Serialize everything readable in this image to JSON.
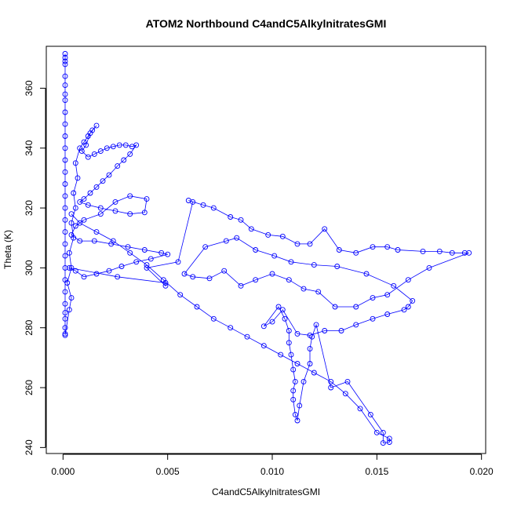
{
  "chart_data": {
    "type": "scatter",
    "title": "ATOM2 Northbound C4andC5AlkylnitratesGMI",
    "xlabel": "C4andC5AlkylnitratesGMI",
    "ylabel": "Theta (K)",
    "xlim": [
      -0.0008,
      0.0202
    ],
    "ylim": [
      238,
      374
    ],
    "xticks": [
      0.0,
      0.005,
      0.01,
      0.015,
      0.02
    ],
    "xtick_labels": [
      "0.000",
      "0.005",
      "0.010",
      "0.015",
      "0.020"
    ],
    "yticks": [
      240,
      260,
      280,
      300,
      320,
      340,
      360
    ],
    "ytick_labels": [
      "240",
      "260",
      "280",
      "300",
      "320",
      "340",
      "360"
    ],
    "grid": false,
    "marker": "open-circle",
    "line": true,
    "color": "#0000ff",
    "series": [
      {
        "name": "",
        "points": [
          [
            0.0001,
            371.5
          ],
          [
            0.0001,
            370.2
          ],
          [
            0.0001,
            369.0
          ],
          [
            0.0001,
            368.0
          ],
          [
            0.0001,
            364.0
          ],
          [
            0.0001,
            361.0
          ],
          [
            0.0001,
            358.0
          ],
          [
            0.0001,
            356.0
          ],
          [
            0.0001,
            352.0
          ],
          [
            0.0001,
            348.0
          ],
          [
            0.0001,
            344.0
          ],
          [
            0.0001,
            340.0
          ],
          [
            0.0001,
            336.0
          ],
          [
            0.0001,
            332.0
          ],
          [
            0.0001,
            328.0
          ],
          [
            0.0001,
            324.0
          ],
          [
            0.0001,
            320.0
          ],
          [
            0.0001,
            316.0
          ],
          [
            0.0001,
            312.0
          ],
          [
            0.0001,
            308.0
          ],
          [
            0.0001,
            304.0
          ],
          [
            0.0001,
            300.0
          ],
          [
            0.0001,
            296.0
          ],
          [
            0.0001,
            292.0
          ],
          [
            0.0001,
            288.0
          ],
          [
            0.0001,
            285.0
          ],
          [
            0.0001,
            283.0
          ],
          [
            0.0001,
            280.0
          ],
          [
            0.0001,
            278.0
          ],
          [
            0.0001,
            277.5
          ],
          [
            0.0003,
            286.0
          ],
          [
            0.0004,
            290.0
          ],
          [
            0.0002,
            295.0
          ],
          [
            0.0004,
            300.0
          ],
          [
            0.0003,
            305.0
          ],
          [
            0.0005,
            310.0
          ],
          [
            0.0004,
            315.0
          ],
          [
            0.0006,
            320.0
          ],
          [
            0.0005,
            325.0
          ],
          [
            0.0007,
            330.0
          ],
          [
            0.0006,
            335.0
          ],
          [
            0.0008,
            340.0
          ],
          [
            0.001,
            342.0
          ],
          [
            0.0012,
            344.0
          ],
          [
            0.0014,
            346.0
          ],
          [
            0.0016,
            347.5
          ],
          [
            0.0013,
            345.0
          ],
          [
            0.0011,
            341.0
          ],
          [
            0.0009,
            339.0
          ],
          [
            0.0012,
            337.0
          ],
          [
            0.0015,
            338.0
          ],
          [
            0.0018,
            339.0
          ],
          [
            0.0021,
            340.0
          ],
          [
            0.0024,
            340.5
          ],
          [
            0.0027,
            341.0
          ],
          [
            0.003,
            341.0
          ],
          [
            0.0033,
            340.5
          ],
          [
            0.0035,
            341.0
          ],
          [
            0.0032,
            338.0
          ],
          [
            0.0029,
            336.0
          ],
          [
            0.0026,
            334.0
          ],
          [
            0.0022,
            331.0
          ],
          [
            0.0019,
            329.0
          ],
          [
            0.0016,
            327.0
          ],
          [
            0.0013,
            325.0
          ],
          [
            0.001,
            323.0
          ],
          [
            0.0008,
            322.0
          ],
          [
            0.0012,
            321.0
          ],
          [
            0.0018,
            320.0
          ],
          [
            0.0025,
            319.0
          ],
          [
            0.0032,
            318.0
          ],
          [
            0.0039,
            318.5
          ],
          [
            0.004,
            323.0
          ],
          [
            0.0032,
            324.0
          ],
          [
            0.0025,
            322.0
          ],
          [
            0.0018,
            318.0
          ],
          [
            0.001,
            316.0
          ],
          [
            0.0006,
            314.0
          ],
          [
            0.0004,
            311.0
          ],
          [
            0.0008,
            309.0
          ],
          [
            0.0015,
            309.0
          ],
          [
            0.0023,
            308.0
          ],
          [
            0.0031,
            307.0
          ],
          [
            0.0039,
            306.0
          ],
          [
            0.0047,
            305.0
          ],
          [
            0.005,
            304.5
          ],
          [
            0.0042,
            303.0
          ],
          [
            0.0035,
            302.0
          ],
          [
            0.0028,
            300.5
          ],
          [
            0.0022,
            299.0
          ],
          [
            0.0016,
            298.0
          ],
          [
            0.001,
            297.0
          ],
          [
            0.0006,
            299.0
          ],
          [
            0.0003,
            300.0
          ],
          [
            0.0026,
            297.0
          ],
          [
            0.0049,
            295.0
          ],
          [
            0.0049,
            294.0
          ],
          [
            0.004,
            300.0
          ],
          [
            0.0055,
            302.0
          ],
          [
            0.0062,
            322.0
          ],
          [
            0.006,
            322.5
          ],
          [
            0.0067,
            321.0
          ],
          [
            0.0072,
            320.0
          ],
          [
            0.008,
            317.0
          ],
          [
            0.0085,
            316.0
          ],
          [
            0.009,
            313.0
          ],
          [
            0.0098,
            311.0
          ],
          [
            0.0105,
            310.5
          ],
          [
            0.0112,
            308.0
          ],
          [
            0.0118,
            308.0
          ],
          [
            0.0125,
            313.0
          ],
          [
            0.0132,
            306.0
          ],
          [
            0.014,
            305.0
          ],
          [
            0.0148,
            307.0
          ],
          [
            0.0155,
            307.0
          ],
          [
            0.016,
            306.0
          ],
          [
            0.0172,
            305.5
          ],
          [
            0.018,
            305.5
          ],
          [
            0.0186,
            305.0
          ],
          [
            0.0192,
            305.0
          ],
          [
            0.0194,
            305.0
          ],
          [
            0.0175,
            300.0
          ],
          [
            0.0165,
            296.0
          ],
          [
            0.0155,
            291.0
          ],
          [
            0.0148,
            290.0
          ],
          [
            0.014,
            287.0
          ],
          [
            0.013,
            287.0
          ],
          [
            0.0122,
            292.0
          ],
          [
            0.0115,
            293.0
          ],
          [
            0.0108,
            296.0
          ],
          [
            0.01,
            298.0
          ],
          [
            0.0092,
            296.0
          ],
          [
            0.0085,
            294.0
          ],
          [
            0.0077,
            299.0
          ],
          [
            0.007,
            296.5
          ],
          [
            0.0062,
            297.0
          ],
          [
            0.0058,
            298.0
          ],
          [
            0.0068,
            307.0
          ],
          [
            0.0078,
            309.0
          ],
          [
            0.0083,
            310.0
          ],
          [
            0.0092,
            306.0
          ],
          [
            0.0101,
            304.0
          ],
          [
            0.0109,
            302.0
          ],
          [
            0.012,
            301.0
          ],
          [
            0.0131,
            300.5
          ],
          [
            0.0145,
            298.0
          ],
          [
            0.0158,
            294.0
          ],
          [
            0.0167,
            289.0
          ],
          [
            0.0165,
            287.0
          ],
          [
            0.0163,
            286.0
          ],
          [
            0.0155,
            284.5
          ],
          [
            0.0148,
            283.0
          ],
          [
            0.014,
            281.0
          ],
          [
            0.0133,
            279.0
          ],
          [
            0.0125,
            279.0
          ],
          [
            0.0118,
            277.5
          ],
          [
            0.0112,
            278.0
          ],
          [
            0.0105,
            286.0
          ],
          [
            0.01,
            282.0
          ],
          [
            0.0096,
            280.5
          ],
          [
            0.0103,
            287.0
          ],
          [
            0.0106,
            283.0
          ],
          [
            0.0108,
            279.0
          ],
          [
            0.0108,
            275.0
          ],
          [
            0.0109,
            271.0
          ],
          [
            0.011,
            266.0
          ],
          [
            0.0111,
            262.0
          ],
          [
            0.011,
            259.0
          ],
          [
            0.011,
            256.0
          ],
          [
            0.0111,
            251.0
          ],
          [
            0.0112,
            249.0
          ],
          [
            0.0113,
            254.0
          ],
          [
            0.0115,
            262.0
          ],
          [
            0.0118,
            268.0
          ],
          [
            0.0118,
            273.0
          ],
          [
            0.0119,
            277.0
          ],
          [
            0.0121,
            281.0
          ],
          [
            0.0128,
            260.0
          ],
          [
            0.0136,
            262.0
          ],
          [
            0.0147,
            251.0
          ],
          [
            0.0153,
            245.0
          ],
          [
            0.0153,
            241.5
          ],
          [
            0.0156,
            241.8
          ],
          [
            0.0156,
            243.0
          ],
          [
            0.015,
            245.0
          ],
          [
            0.0142,
            253.0
          ],
          [
            0.0135,
            258.0
          ],
          [
            0.0128,
            262.0
          ],
          [
            0.012,
            265.0
          ],
          [
            0.0112,
            268.0
          ],
          [
            0.0104,
            271.0
          ],
          [
            0.0096,
            274.0
          ],
          [
            0.0088,
            277.0
          ],
          [
            0.008,
            280.0
          ],
          [
            0.0072,
            283.0
          ],
          [
            0.0064,
            287.0
          ],
          [
            0.0056,
            291.0
          ],
          [
            0.0048,
            296.0
          ],
          [
            0.004,
            301.0
          ],
          [
            0.0032,
            305.0
          ],
          [
            0.0024,
            309.0
          ],
          [
            0.0016,
            312.0
          ],
          [
            0.0008,
            315.0
          ],
          [
            0.0004,
            318.0
          ]
        ]
      }
    ]
  }
}
